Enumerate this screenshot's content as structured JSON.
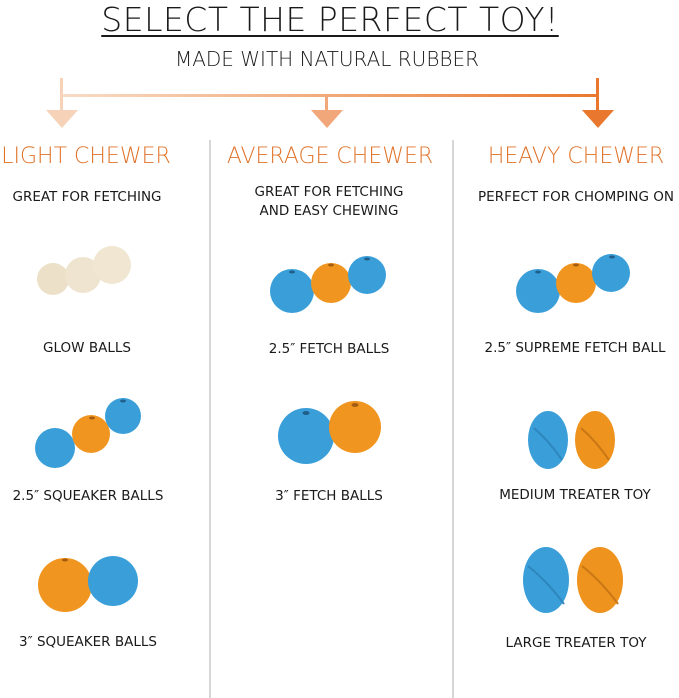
{
  "title": "SELECT THE PERFECT TOY!",
  "subtitle": "MADE WITH NATURAL RUBBER",
  "colors": {
    "accent": "#e0732a",
    "arrow_light": "#f6d3b8",
    "arrow_mid": "#f2a77a",
    "arrow_dark": "#e9782e",
    "blue": "#3a9fd9",
    "orange": "#f0951f",
    "cream": "#ede2cc"
  },
  "columns": [
    {
      "heading": "LIGHT CHEWER",
      "description": "GREAT FOR FETCHING",
      "products": [
        {
          "label": "GLOW BALLS"
        },
        {
          "label": "2.5″ SQUEAKER BALLS"
        },
        {
          "label": "3″ SQUEAKER BALLS"
        }
      ]
    },
    {
      "heading": "AVERAGE CHEWER",
      "description_lines": [
        "GREAT FOR FETCHING",
        "AND EASY CHEWING"
      ],
      "products": [
        {
          "label": "2.5″ FETCH BALLS"
        },
        {
          "label": "3″ FETCH BALLS"
        }
      ]
    },
    {
      "heading": "HEAVY CHEWER",
      "description": "PERFECT FOR CHOMPING ON",
      "products": [
        {
          "label": "2.5″ SUPREME FETCH BALL"
        },
        {
          "label": "MEDIUM TREATER TOY"
        },
        {
          "label": "LARGE TREATER TOY"
        }
      ]
    }
  ]
}
